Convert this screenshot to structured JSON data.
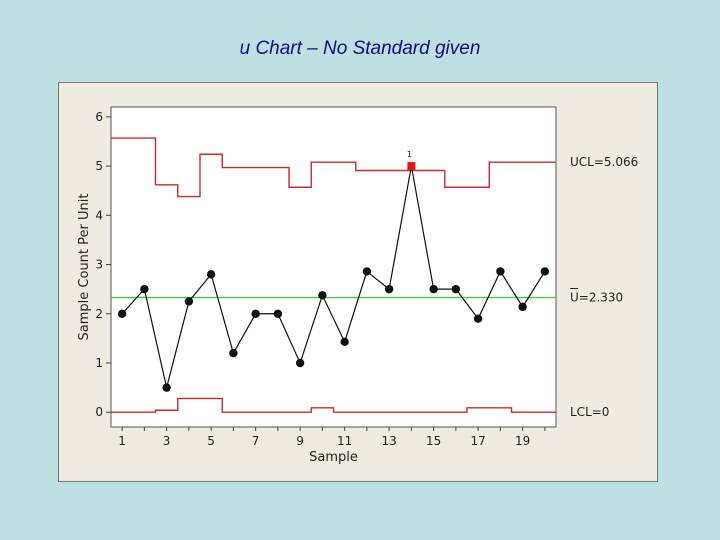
{
  "slide": {
    "title": "u Chart – No Standard given"
  },
  "colors": {
    "background": "#bfe0e3",
    "title": "#0b0b8c",
    "frame": "#efebe0",
    "plot": "#ffffff",
    "limit_line": "#cc2b2b",
    "center_line": "#44cc44",
    "point": "#111111",
    "flag_point": "#e01818"
  },
  "chart_data": {
    "type": "line",
    "title": "u Chart – No Standard given",
    "xlabel": "Sample",
    "ylabel": "Sample Count Per Unit",
    "xlim": [
      0.5,
      20.5
    ],
    "ylim": [
      -0.3,
      6.2
    ],
    "x_ticks": [
      1,
      3,
      5,
      7,
      9,
      11,
      13,
      15,
      17,
      19
    ],
    "y_ticks": [
      0,
      1,
      2,
      3,
      4,
      5,
      6
    ],
    "x": [
      1,
      2,
      3,
      4,
      5,
      6,
      7,
      8,
      9,
      10,
      11,
      12,
      13,
      14,
      15,
      16,
      17,
      18,
      19,
      20
    ],
    "values": [
      2.0,
      2.5,
      0.5,
      2.25,
      2.8,
      1.2,
      2.0,
      2.0,
      1.0,
      2.375,
      1.43,
      2.86,
      2.5,
      5.0,
      2.5,
      2.5,
      1.9,
      2.86,
      2.14,
      2.86
    ],
    "center_line": 2.33,
    "ucl": [
      5.57,
      5.57,
      4.62,
      4.38,
      5.24,
      4.97,
      4.97,
      4.97,
      4.57,
      5.08,
      5.08,
      4.91,
      4.91,
      4.91,
      4.91,
      4.57,
      4.57,
      5.08,
      5.08,
      5.08
    ],
    "lcl": [
      0,
      0,
      0.04,
      0.28,
      0.28,
      0,
      0,
      0,
      0,
      0.09,
      0,
      0,
      0,
      0,
      0,
      0,
      0.09,
      0.09,
      0,
      0
    ],
    "flagged": [
      {
        "x": 14,
        "label": "1"
      }
    ],
    "labels": {
      "ucl": "UCL=5.066",
      "center": "U=2.330",
      "lcl": "LCL=0"
    },
    "grid": false,
    "legend": "none"
  }
}
